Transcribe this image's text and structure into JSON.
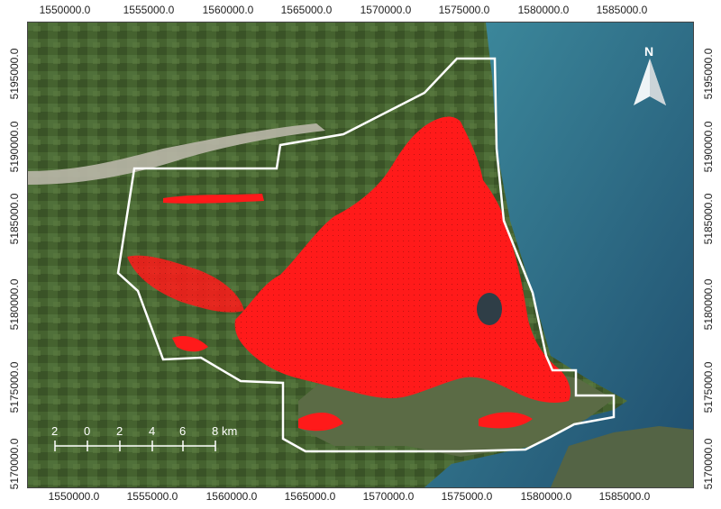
{
  "axes": {
    "x_labels": [
      "1550000.0",
      "1555000.0",
      "1560000.0",
      "1565000.0",
      "1570000.0",
      "1575000.0",
      "1580000.0",
      "1585000.0"
    ],
    "y_labels": [
      "5195000.0",
      "5190000.0",
      "5185000.0",
      "5180000.0",
      "5175000.0",
      "5170000.0"
    ]
  },
  "north_arrow": {
    "label": "N",
    "icon": "north-arrow-icon"
  },
  "scale_bar": {
    "ticks": [
      "2",
      "0",
      "2",
      "4",
      "6",
      "8"
    ],
    "unit": "km"
  },
  "colors": {
    "boundary": "#ffffff",
    "urban_highlight": "#ff1a1a",
    "ocean": "#2f6f86",
    "land": "#3f5d2e",
    "river": "#b9b7a8"
  }
}
